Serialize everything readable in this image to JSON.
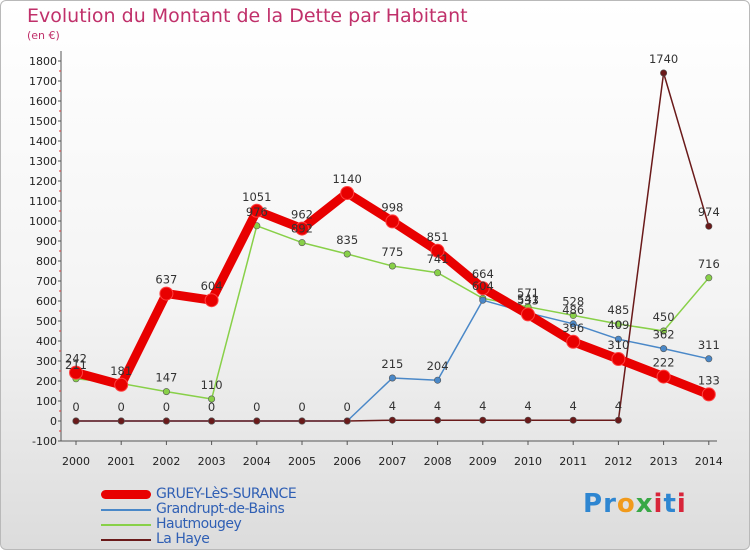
{
  "title": "Evolution du Montant de la Dette par Habitant",
  "unit_label": "(en €)",
  "logo_text": "Proxiti",
  "chart_data": {
    "type": "line",
    "title": "Evolution du Montant de la Dette par Habitant",
    "ylabel": "(en €)",
    "xlabel": "",
    "ylim": [
      -100,
      1800
    ],
    "ytick_step": 100,
    "categories": [
      "2000",
      "2001",
      "2002",
      "2003",
      "2004",
      "2005",
      "2006",
      "2007",
      "2008",
      "2009",
      "2010",
      "2011",
      "2012",
      "2013",
      "2014"
    ],
    "series": [
      {
        "name": "Hautmougey",
        "color": "#88d048",
        "values": [
          211,
          188,
          147,
          110,
          976,
          892,
          835,
          775,
          741,
          613,
          571,
          528,
          485,
          450,
          716
        ],
        "labels": [
          "211",
          "",
          "147",
          "110",
          "976",
          "892",
          "835",
          "775",
          "741",
          "",
          "571",
          "528",
          "485",
          "450",
          "716"
        ]
      },
      {
        "name": "Grandrupt-de-Bains",
        "color": "#4a88c8",
        "values": [
          0,
          0,
          0,
          0,
          0,
          0,
          0,
          215,
          204,
          604,
          541,
          486,
          409,
          362,
          311
        ],
        "labels": [
          "",
          "",
          "",
          "",
          "",
          "",
          "",
          "215",
          "204",
          "604",
          "541",
          "486",
          "409",
          "362",
          "311"
        ]
      },
      {
        "name": "La Haye",
        "color": "#6a1a1a",
        "values": [
          0,
          0,
          0,
          0,
          0,
          0,
          0,
          4,
          4,
          4,
          4,
          4,
          4,
          1740,
          974
        ],
        "labels": [
          "0",
          "0",
          "0",
          "0",
          "0",
          "0",
          "0",
          "4",
          "4",
          "4",
          "4",
          "4",
          "4",
          "1740",
          "974"
        ]
      },
      {
        "name": "GRUEY-LèS-SURANCE",
        "color": "#e80000",
        "values": [
          242,
          181,
          637,
          604,
          1051,
          962,
          1140,
          998,
          851,
          664,
          533,
          396,
          310,
          222,
          133
        ],
        "labels": [
          "242",
          "181",
          "637",
          "604",
          "1051",
          "962",
          "1140",
          "998",
          "851",
          "664",
          "533",
          "396",
          "310",
          "222",
          "133"
        ]
      }
    ],
    "legend": [
      {
        "name": "GRUEY-LèS-SURANCE",
        "color": "#e80000"
      },
      {
        "name": "Grandrupt-de-Bains",
        "color": "#4a88c8"
      },
      {
        "name": "Hautmougey",
        "color": "#88d048"
      },
      {
        "name": "La Haye",
        "color": "#6a1a1a"
      }
    ],
    "legend_position": "bottom-left",
    "grid": false
  }
}
